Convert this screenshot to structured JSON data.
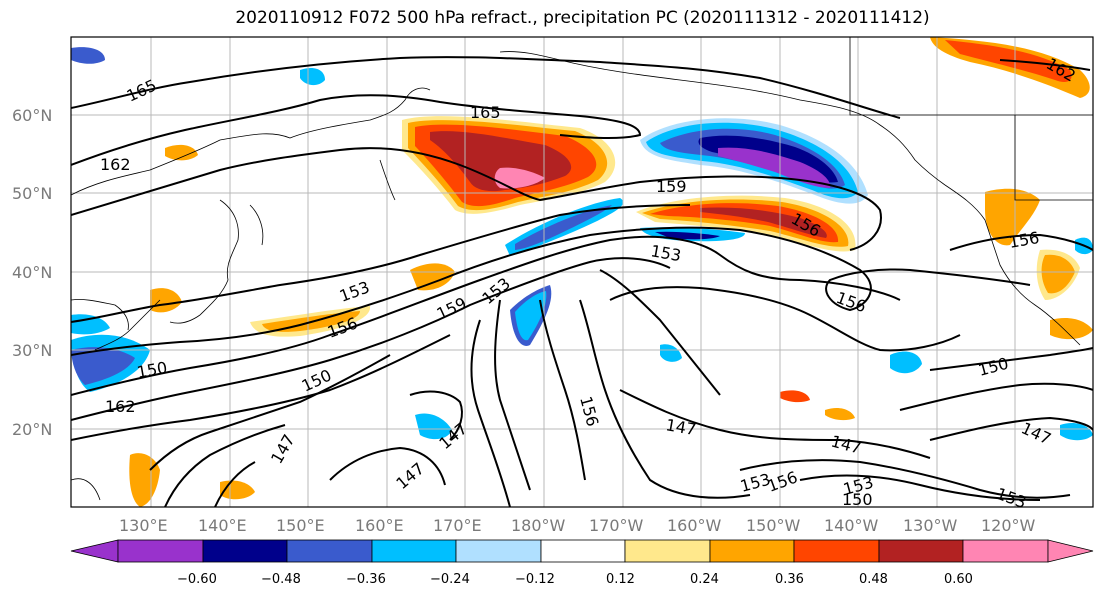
{
  "title": "2020110912 F072 500 hPa refract., precipitation PC (2020111312 - 2020111412)",
  "map": {
    "lat_labels": [
      "60°N",
      "50°N",
      "40°N",
      "30°N",
      "20°N"
    ],
    "lon_labels": [
      "130°E",
      "140°E",
      "150°E",
      "160°E",
      "170°E",
      "180°W",
      "170°W",
      "160°W",
      "150°W",
      "140°W",
      "130°W",
      "120°W"
    ],
    "contour_labels": [
      "165",
      "165",
      "162",
      "162",
      "159",
      "159",
      "156",
      "156",
      "156",
      "156",
      "153",
      "153",
      "153",
      "153",
      "153",
      "150",
      "150",
      "150",
      "147",
      "147",
      "147",
      "147",
      "147",
      "147",
      "156",
      "156",
      "162",
      "150",
      "153"
    ]
  },
  "colorbar": {
    "ticks": [
      "−0.60",
      "−0.48",
      "−0.36",
      "−0.24",
      "−0.12",
      "0.12",
      "0.24",
      "0.36",
      "0.48",
      "0.60"
    ],
    "colors": [
      "#9932CC",
      "#00008B",
      "#3A5BCD",
      "#00BFFF",
      "#B0E0FF",
      "#FFFFFF",
      "#FFE88C",
      "#FFA500",
      "#FF4500",
      "#B22222",
      "#FF85B3"
    ]
  }
}
